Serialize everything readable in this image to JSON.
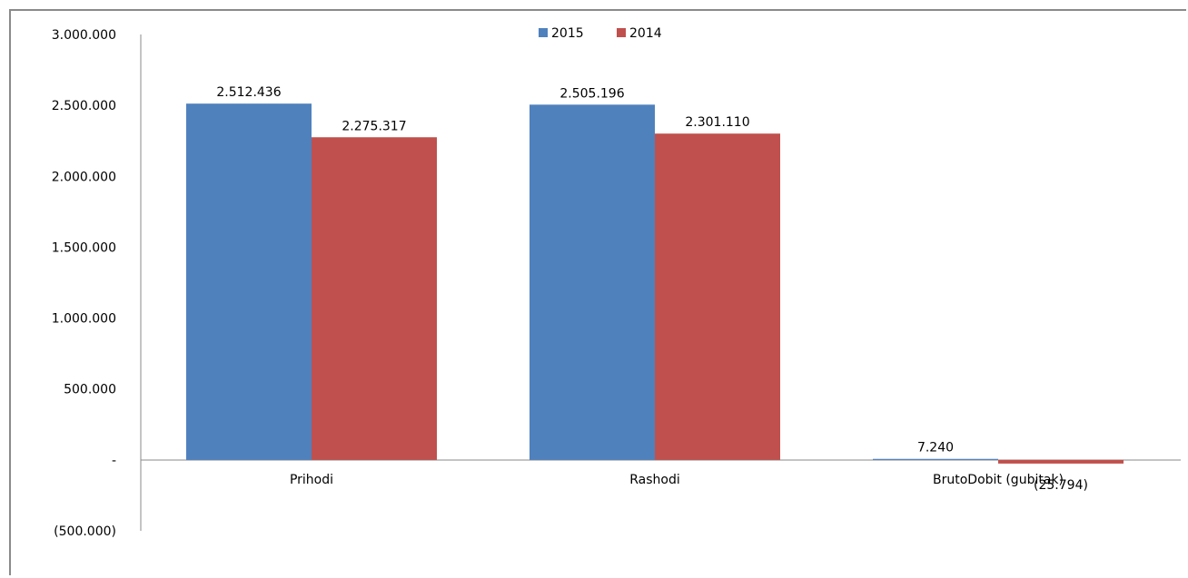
{
  "chart_data": {
    "type": "bar",
    "categories": [
      "Prihodi",
      "Rashodi",
      "BrutoDobit (gubitak)"
    ],
    "series": [
      {
        "name": "2015",
        "values": [
          2512436,
          2505196,
          7240
        ],
        "labels": [
          "2.512.436",
          "2.505.196",
          "7.240"
        ],
        "color": "#4f81bd"
      },
      {
        "name": "2014",
        "values": [
          2275317,
          2301110,
          -25794
        ],
        "labels": [
          "2.275.317",
          "2.301.110",
          "(25.794)"
        ],
        "color": "#c0504d"
      }
    ],
    "y_ticks": [
      {
        "value": 3000000,
        "label": "3.000.000"
      },
      {
        "value": 2500000,
        "label": "2.500.000"
      },
      {
        "value": 2000000,
        "label": "2.000.000"
      },
      {
        "value": 1500000,
        "label": "1.500.000"
      },
      {
        "value": 1000000,
        "label": "1.000.000"
      },
      {
        "value": 500000,
        "label": "500.000"
      },
      {
        "value": 0,
        "label": "-"
      },
      {
        "value": -500000,
        "label": "(500.000)"
      }
    ],
    "ylim": [
      -500000,
      3000000
    ],
    "legend_position": "top-center",
    "grid": false
  }
}
